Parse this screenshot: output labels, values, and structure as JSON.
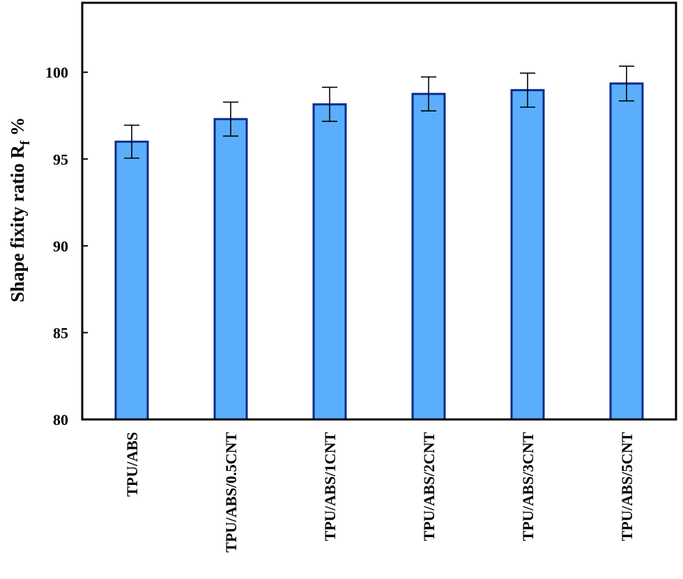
{
  "chart_data": {
    "type": "bar",
    "title": "",
    "xlabel": "",
    "ylabel": "Shape fixity ratio R",
    "ylabel_subscript": "f",
    "ylabel_suffix": " %",
    "ylim": [
      80,
      104
    ],
    "yticks": [
      80,
      85,
      90,
      95,
      100
    ],
    "grid": false,
    "categories": [
      "TPU/ABS",
      "TPU/ABS/0.5CNT",
      "TPU/ABS/1CNT",
      "TPU/ABS/2CNT",
      "TPU/ABS/3CNT",
      "TPU/ABS/5CNT"
    ],
    "values": [
      96.0,
      97.3,
      98.15,
      98.75,
      98.97,
      99.35
    ],
    "errors": [
      0.95,
      0.98,
      0.98,
      0.98,
      0.98,
      1.0
    ],
    "colors": {
      "bar_fill": "#5aaefc",
      "bar_stroke": "#0d2b8c",
      "error_bar": "#000000",
      "axis": "#000000"
    }
  }
}
